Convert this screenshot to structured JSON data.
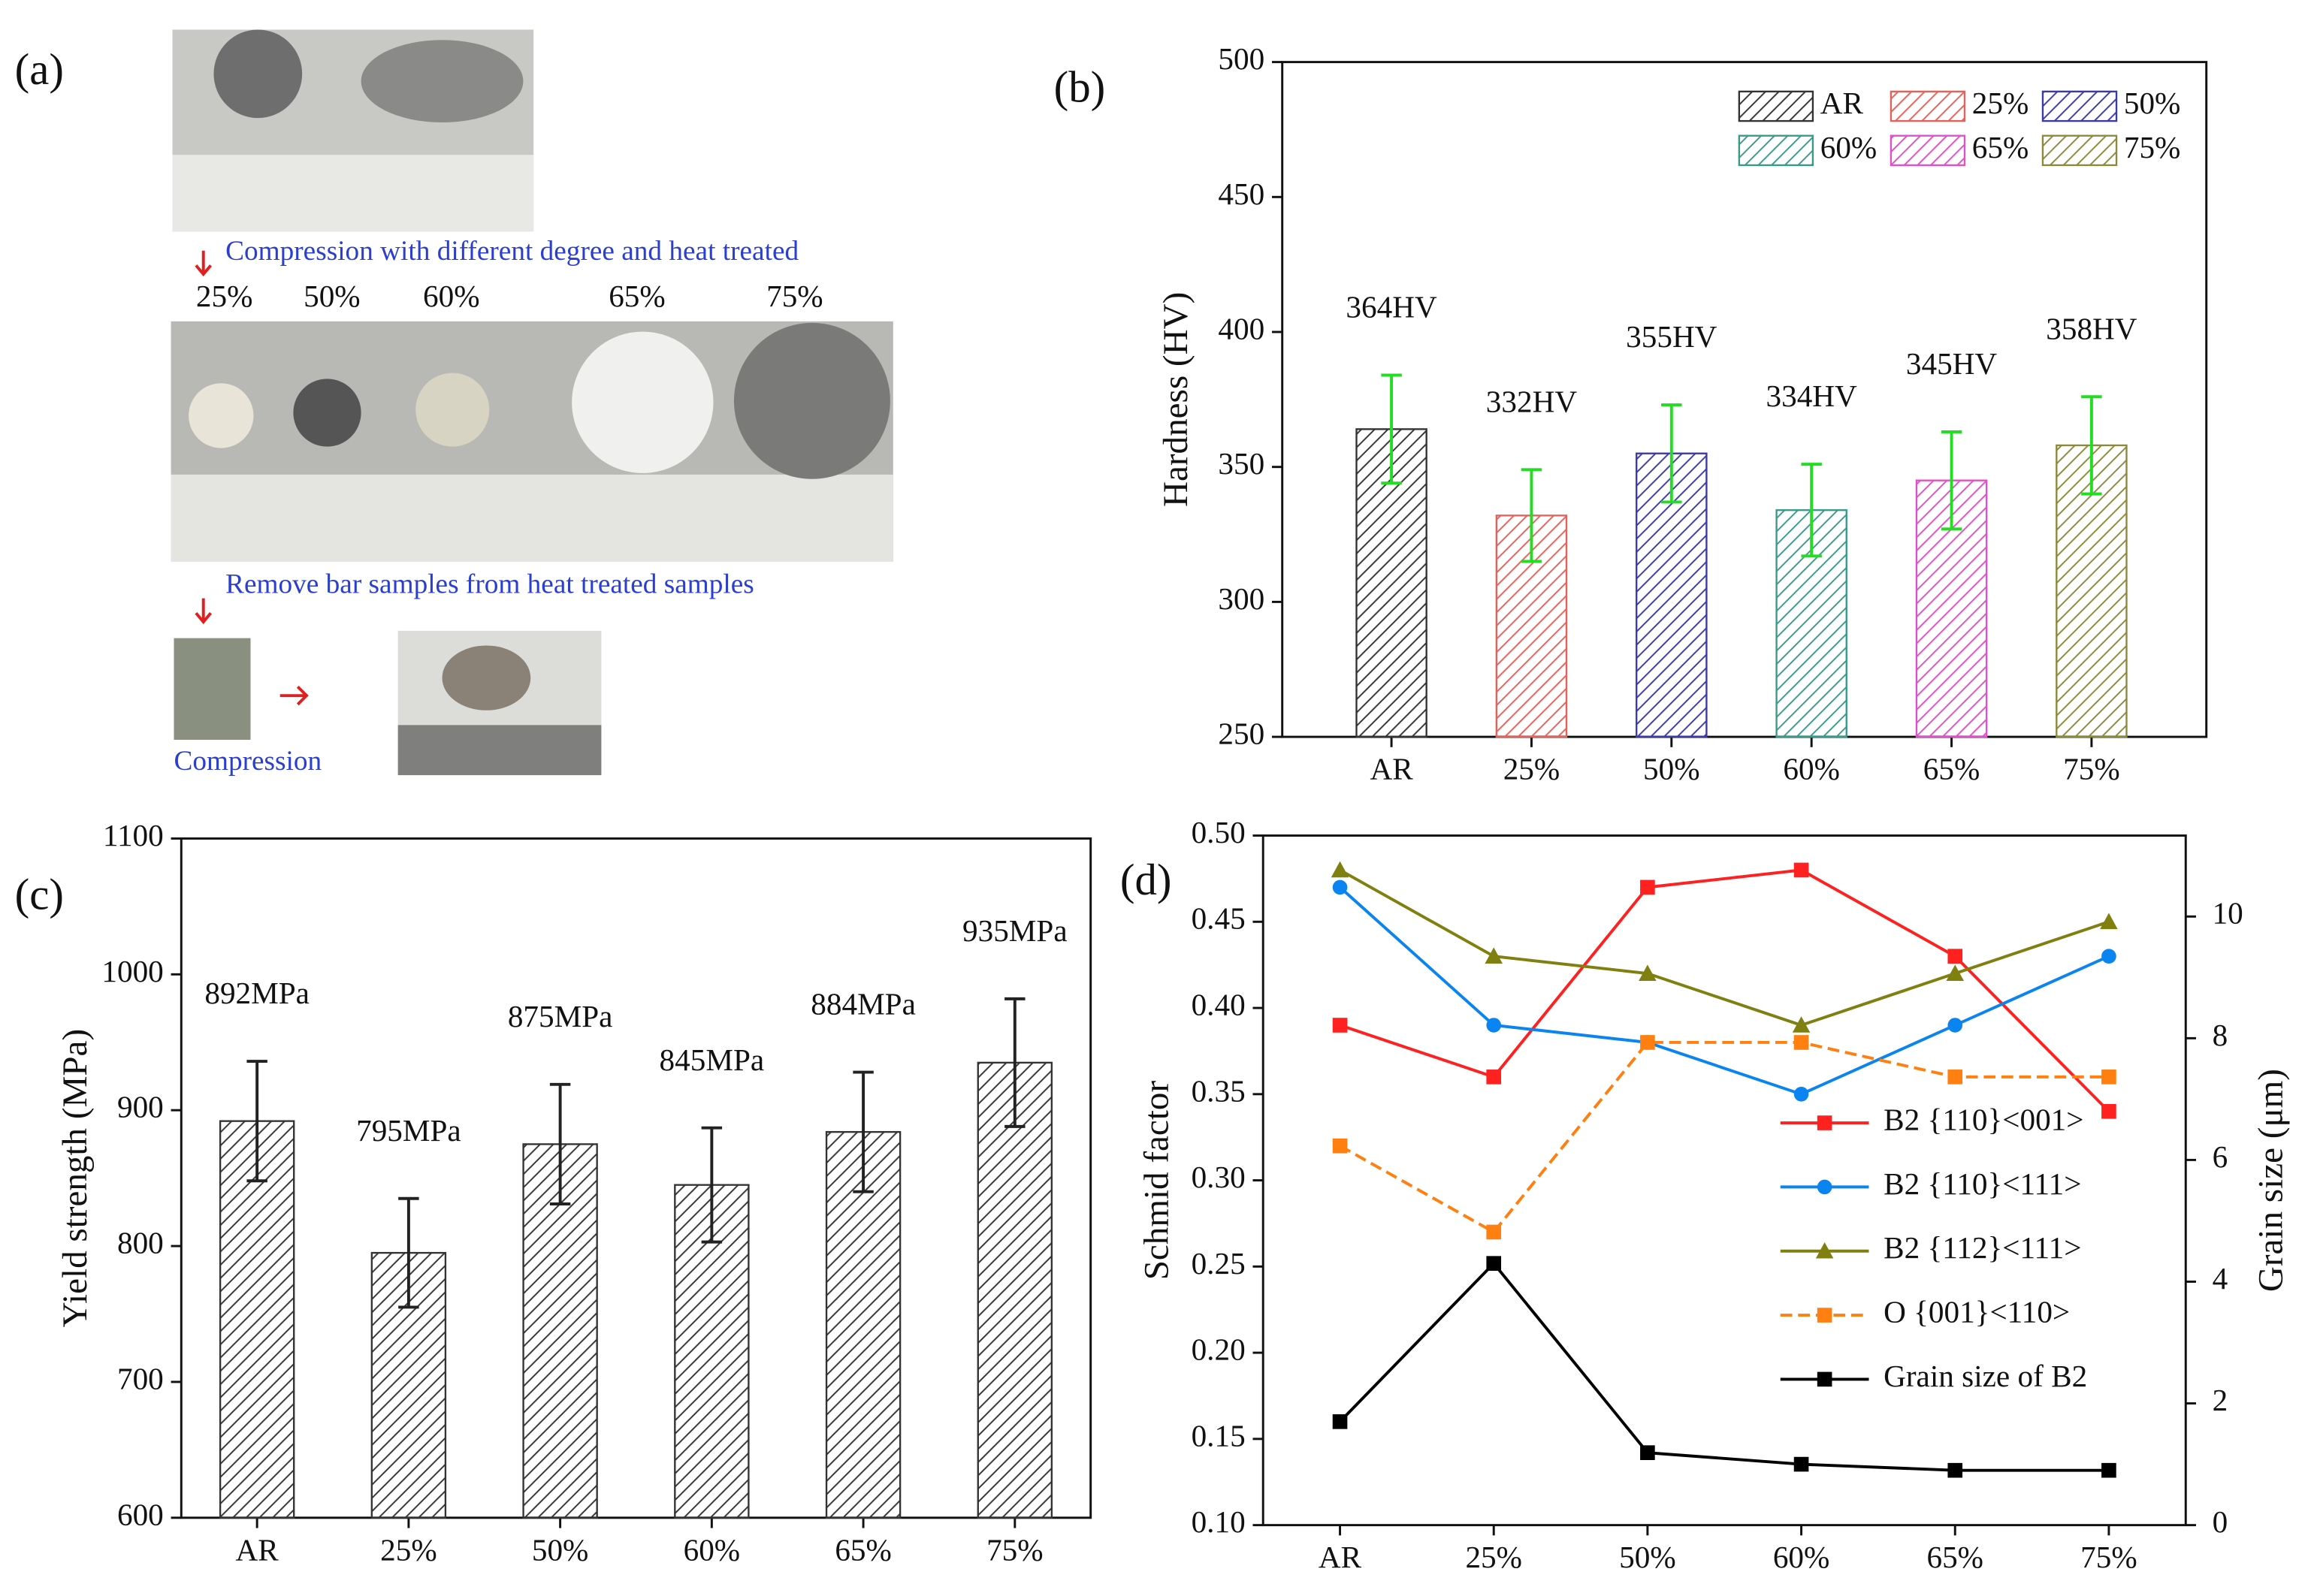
{
  "panel_a": {
    "panel_label": "(a)",
    "step1": "Compression with different degree and heat treated",
    "degrees": [
      "25%",
      "50%",
      "60%",
      "65%",
      "75%"
    ],
    "step2": "Remove bar samples from heat treated samples",
    "step3": "Compression"
  },
  "chart_data": [
    {
      "type": "bar",
      "panel_label": "(b)",
      "ylabel": "Hardness (HV)",
      "categories": [
        "AR",
        "25%",
        "50%",
        "60%",
        "65%",
        "75%"
      ],
      "values": [
        364,
        332,
        355,
        334,
        345,
        358
      ],
      "errors": [
        20,
        17,
        18,
        17,
        18,
        18
      ],
      "value_labels": [
        "364HV",
        "332HV",
        "355HV",
        "334HV",
        "345HV",
        "358HV"
      ],
      "colors": [
        "#333333",
        "#e8605a",
        "#3a3aa8",
        "#3a9a8a",
        "#e050c8",
        "#8a8a3a"
      ],
      "error_color": "#22dd22",
      "legend": true,
      "ylim": [
        250,
        500
      ],
      "yticks": [
        250,
        300,
        350,
        400,
        450,
        500
      ]
    },
    {
      "type": "bar",
      "panel_label": "(c)",
      "ylabel": "Yield strength (MPa)",
      "categories": [
        "AR",
        "25%",
        "50%",
        "60%",
        "65%",
        "75%"
      ],
      "values": [
        892,
        795,
        875,
        845,
        884,
        935
      ],
      "errors": [
        44,
        40,
        44,
        42,
        44,
        47
      ],
      "value_labels": [
        "892MPa",
        "795MPa",
        "875MPa",
        "845MPa",
        "884MPa",
        "935MPa"
      ],
      "colors": [
        "#333333",
        "#333333",
        "#333333",
        "#333333",
        "#333333",
        "#333333"
      ],
      "error_color": "#222222",
      "legend": false,
      "ylim": [
        600,
        1100
      ],
      "yticks": [
        600,
        700,
        800,
        900,
        1000,
        1100
      ]
    },
    {
      "type": "line",
      "panel_label": "(d)",
      "ylabel": "Schmid factor",
      "y2label": "Grain size (μm)",
      "categories": [
        "AR",
        "25%",
        "50%",
        "60%",
        "65%",
        "75%"
      ],
      "series": [
        {
          "name": "B2  {110}<001>",
          "color": "#ff2020",
          "marker": "square",
          "values": [
            0.39,
            0.36,
            0.47,
            0.48,
            0.43,
            0.34
          ]
        },
        {
          "name": "B2  {110}<111>",
          "color": "#0a84f0",
          "marker": "circle",
          "values": [
            0.47,
            0.39,
            0.38,
            0.35,
            0.39,
            0.43
          ]
        },
        {
          "name": "B2  {112}<111>",
          "color": "#808010",
          "marker": "triangle",
          "values": [
            0.48,
            0.43,
            0.42,
            0.39,
            0.42,
            0.45
          ]
        },
        {
          "name": "O  {001}<110>",
          "color": "#ff8010",
          "marker": "square",
          "linestyle": "dashed",
          "values": [
            0.32,
            0.27,
            0.38,
            0.38,
            0.36,
            0.36
          ]
        },
        {
          "name": "Grain size of B2",
          "color": "#000000",
          "marker": "square",
          "axis": "y2",
          "values": [
            1.7,
            4.3,
            1.19,
            1.0,
            0.9,
            0.9
          ]
        }
      ],
      "ylim": [
        0.1,
        0.5
      ],
      "yticks": [
        {
          "value": 0.1,
          "label": "0.10"
        },
        0.15,
        {
          "value": 0.2,
          "label": "0.20"
        },
        0.25,
        {
          "value": 0.3,
          "label": "0.30"
        },
        0.35,
        {
          "value": 0.4,
          "label": "0.40"
        },
        0.45,
        {
          "value": 0.5,
          "label": "0.50"
        }
      ],
      "y2lim": [
        0,
        11.33
      ],
      "y2ticks": [
        0,
        2,
        4,
        6,
        8,
        10
      ]
    }
  ]
}
